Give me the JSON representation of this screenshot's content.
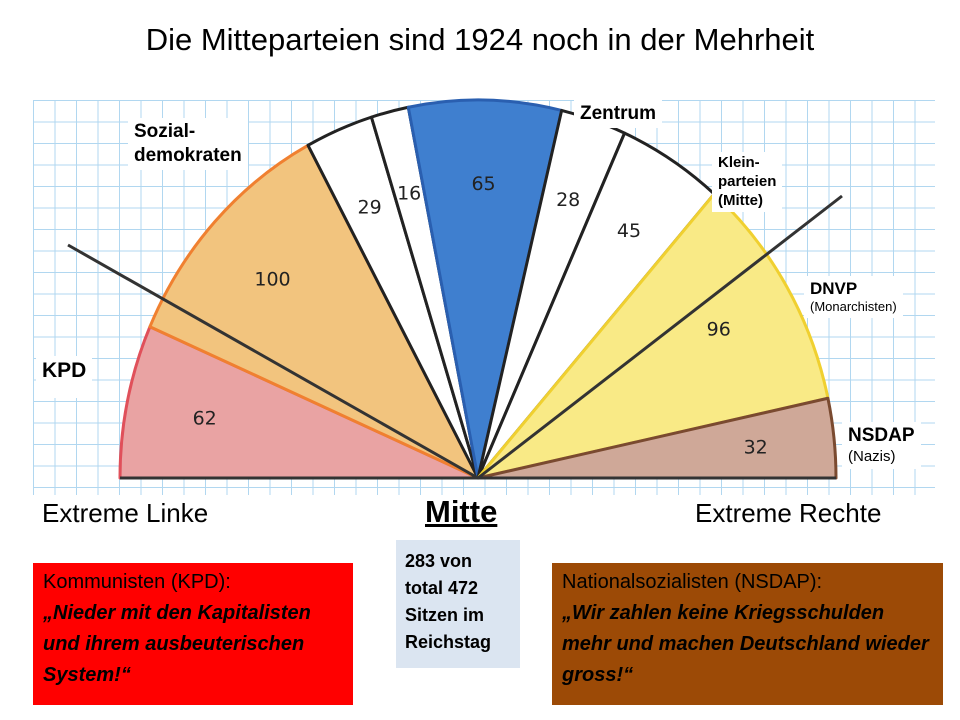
{
  "title": "Die Mitteparteien sind 1924 noch in der Mehrheit",
  "chart_data": {
    "type": "pie",
    "variant": "semicircle-parliament",
    "title": "Die Mitteparteien sind 1924 noch in der Mehrheit",
    "slices": [
      {
        "party": "KPD",
        "value": 62,
        "fill": "#e9a3a3",
        "stroke": "#e0505a"
      },
      {
        "party": "Sozialdemokraten",
        "value": 100,
        "fill": "#f2c47e",
        "stroke": "#f08030"
      },
      {
        "party": "Kleinpartei links",
        "value": 29,
        "fill": "#ffffff",
        "stroke": "#222222"
      },
      {
        "party": "Kleinpartei",
        "value": 16,
        "fill": "#ffffff",
        "stroke": "#222222"
      },
      {
        "party": "Zentrum",
        "value": 65,
        "fill": "#3f7fcf",
        "stroke": "#2a5fb0"
      },
      {
        "party": "Kleinparteien (Mitte) 1",
        "value": 28,
        "fill": "#ffffff",
        "stroke": "#222222"
      },
      {
        "party": "Kleinparteien (Mitte) 2",
        "value": 45,
        "fill": "#ffffff",
        "stroke": "#222222"
      },
      {
        "party": "DNVP",
        "value": 96,
        "fill": "#f9ea86",
        "stroke": "#f0d030"
      },
      {
        "party": "NSDAP",
        "value": 32,
        "fill": "#cfa898",
        "stroke": "#7a4a30"
      }
    ]
  },
  "labels": {
    "sozial1": "Sozial-",
    "sozial2": "demokraten",
    "zentrum": "Zentrum",
    "klein1": "Klein-",
    "klein2": "parteien",
    "klein3": "(Mitte)",
    "dnvp": "DNVP",
    "dnvp_sub": "(Monarchisten)",
    "nsdap": "NSDAP",
    "nsdap_sub": "(Nazis)",
    "kpd": "KPD"
  },
  "axis": {
    "left": "Extreme Linke",
    "center": "Mitte",
    "right": "Extreme Rechte"
  },
  "boxes": {
    "kpd": {
      "heading": "Kommunisten (KPD):",
      "quote": "„Nieder mit den Kapitalisten und ihrem ausbeuterischen System!“",
      "color": "#ff0000"
    },
    "mitte": {
      "text": "283 von total 472 Sitzen im Reichstag",
      "color": "#dbe5f1"
    },
    "nsdap": {
      "heading": "Nationalsozialisten (NSDAP):",
      "quote": "„Wir zahlen keine Kriegsschulden mehr und machen Deutschland wieder gross!“",
      "color": "#9c4a06"
    }
  }
}
